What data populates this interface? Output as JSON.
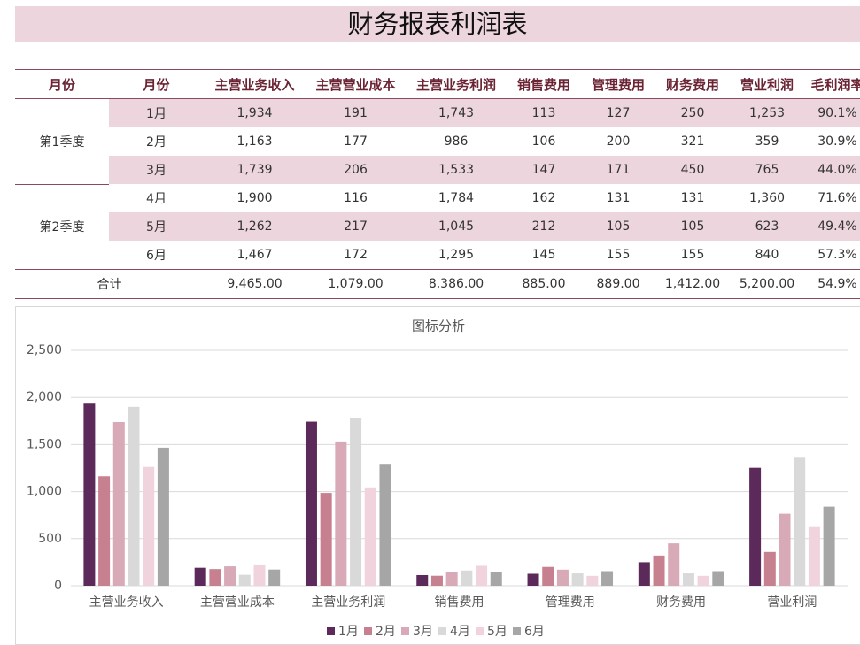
{
  "header": {
    "title": "财务报表利润表"
  },
  "table": {
    "headers": [
      "月份",
      "月份",
      "主营业务收入",
      "主营营业成本",
      "主营业务利润",
      "销售费用",
      "管理费用",
      "财务费用",
      "营业利润",
      "毛利润率"
    ],
    "groups": [
      {
        "label": "第1季度",
        "rows": [
          [
            "1月",
            "1,934",
            "191",
            "1,743",
            "113",
            "127",
            "250",
            "1,253",
            "90.1%"
          ],
          [
            "2月",
            "1,163",
            "177",
            "986",
            "106",
            "200",
            "321",
            "359",
            "30.9%"
          ],
          [
            "3月",
            "1,739",
            "206",
            "1,533",
            "147",
            "171",
            "450",
            "765",
            "44.0%"
          ]
        ]
      },
      {
        "label": "第2季度",
        "rows": [
          [
            "4月",
            "1,900",
            "116",
            "1,784",
            "162",
            "131",
            "131",
            "1,360",
            "71.6%"
          ],
          [
            "5月",
            "1,262",
            "217",
            "1,045",
            "212",
            "105",
            "105",
            "623",
            "49.4%"
          ],
          [
            "6月",
            "1,467",
            "172",
            "1,295",
            "145",
            "155",
            "155",
            "840",
            "57.3%"
          ]
        ]
      }
    ],
    "total": {
      "label": "合计",
      "cells": [
        "9,465.00",
        "1,079.00",
        "8,386.00",
        "885.00",
        "889.00",
        "1,412.00",
        "5,200.00",
        "54.9%"
      ]
    }
  },
  "chart_data": {
    "type": "bar",
    "title": "图标分析",
    "categories": [
      "主营业务收入",
      "主营营业成本",
      "主营业务利润",
      "销售费用",
      "管理费用",
      "财务费用",
      "营业利润"
    ],
    "series": [
      {
        "name": "1月",
        "color": "#5c2a5a",
        "values": [
          1934,
          191,
          1743,
          113,
          127,
          250,
          1253
        ]
      },
      {
        "name": "2月",
        "color": "#c7808f",
        "values": [
          1163,
          177,
          986,
          106,
          200,
          321,
          359
        ]
      },
      {
        "name": "3月",
        "color": "#d8a9b6",
        "values": [
          1739,
          206,
          1533,
          147,
          171,
          450,
          765
        ]
      },
      {
        "name": "4月",
        "color": "#d9d9d9",
        "values": [
          1900,
          116,
          1784,
          162,
          131,
          131,
          1360
        ]
      },
      {
        "name": "5月",
        "color": "#f0d3dc",
        "values": [
          1262,
          217,
          1045,
          212,
          105,
          105,
          623
        ]
      },
      {
        "name": "6月",
        "color": "#a6a6a6",
        "values": [
          1467,
          172,
          1295,
          145,
          155,
          155,
          840
        ]
      }
    ],
    "ylim": [
      0,
      2500
    ],
    "yticks": [
      0,
      500,
      {
        "value": 1000,
        "label": "1,000"
      },
      {
        "value": 1500,
        "label": "1,500"
      },
      {
        "value": 2000,
        "label": "2,000"
      },
      {
        "value": 2500,
        "label": "2,500"
      }
    ],
    "grid": true,
    "legend": "bottom"
  }
}
